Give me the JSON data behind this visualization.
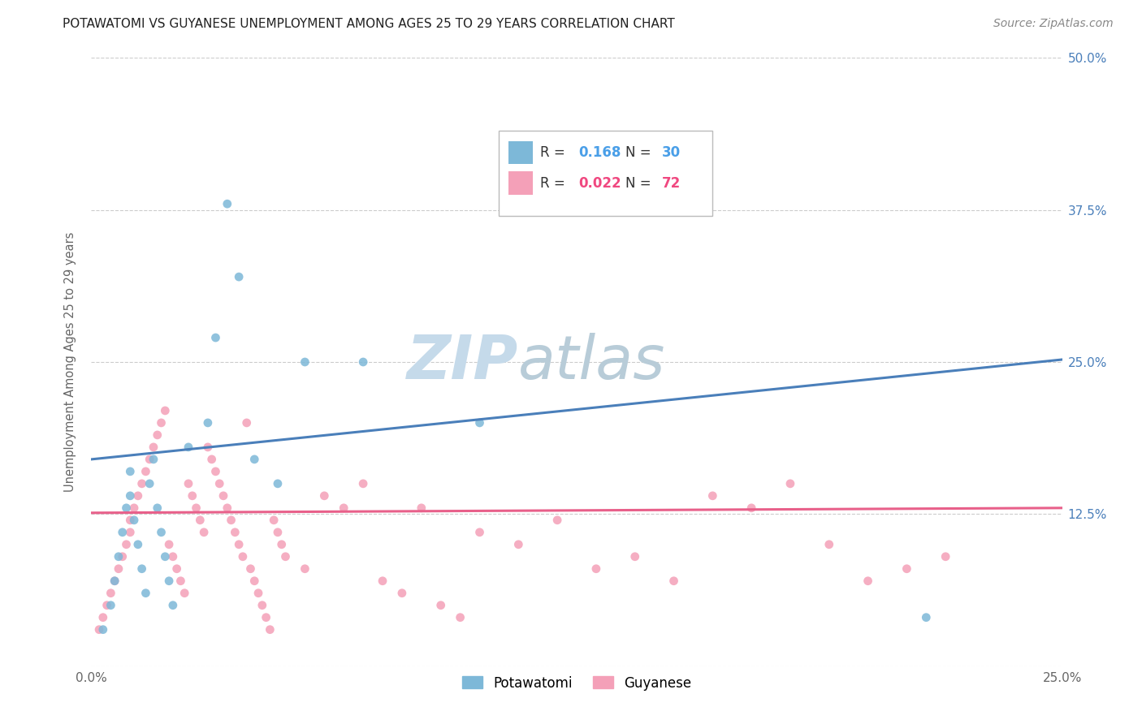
{
  "title": "POTAWATOMI VS GUYANESE UNEMPLOYMENT AMONG AGES 25 TO 29 YEARS CORRELATION CHART",
  "source": "Source: ZipAtlas.com",
  "ylabel": "Unemployment Among Ages 25 to 29 years",
  "xlim": [
    0,
    0.25
  ],
  "ylim": [
    0,
    0.5
  ],
  "xticks": [
    0.0,
    0.05,
    0.1,
    0.15,
    0.2,
    0.25
  ],
  "xticklabels": [
    "0.0%",
    "",
    "",
    "",
    "",
    "25.0%"
  ],
  "yticks": [
    0.0,
    0.125,
    0.25,
    0.375,
    0.5
  ],
  "yticklabels_right": [
    "",
    "12.5%",
    "25.0%",
    "37.5%",
    "50.0%"
  ],
  "potawatomi_R": 0.168,
  "potawatomi_N": 30,
  "guyanese_R": 0.022,
  "guyanese_N": 72,
  "potawatomi_color": "#7db8d8",
  "guyanese_color": "#f4a0b8",
  "potawatomi_line_color": "#4a7fba",
  "guyanese_line_color": "#e8608a",
  "legend_color_potawatomi": "#4a9fe8",
  "legend_color_guyanese": "#f04880",
  "watermark_color": "#d8e8f0",
  "background_color": "#ffffff",
  "potawatomi_x": [
    0.003,
    0.005,
    0.006,
    0.007,
    0.008,
    0.009,
    0.01,
    0.01,
    0.011,
    0.012,
    0.013,
    0.014,
    0.015,
    0.016,
    0.017,
    0.018,
    0.019,
    0.02,
    0.021,
    0.025,
    0.03,
    0.032,
    0.035,
    0.038,
    0.042,
    0.048,
    0.055,
    0.07,
    0.1,
    0.215
  ],
  "potawatomi_y": [
    0.03,
    0.05,
    0.07,
    0.09,
    0.11,
    0.13,
    0.14,
    0.16,
    0.12,
    0.1,
    0.08,
    0.06,
    0.15,
    0.17,
    0.13,
    0.11,
    0.09,
    0.07,
    0.05,
    0.18,
    0.2,
    0.27,
    0.38,
    0.32,
    0.17,
    0.15,
    0.25,
    0.25,
    0.2,
    0.04
  ],
  "guyanese_x": [
    0.002,
    0.003,
    0.004,
    0.005,
    0.006,
    0.007,
    0.008,
    0.009,
    0.01,
    0.01,
    0.011,
    0.012,
    0.013,
    0.014,
    0.015,
    0.016,
    0.017,
    0.018,
    0.019,
    0.02,
    0.021,
    0.022,
    0.023,
    0.024,
    0.025,
    0.026,
    0.027,
    0.028,
    0.029,
    0.03,
    0.031,
    0.032,
    0.033,
    0.034,
    0.035,
    0.036,
    0.037,
    0.038,
    0.039,
    0.04,
    0.041,
    0.042,
    0.043,
    0.044,
    0.045,
    0.046,
    0.047,
    0.048,
    0.049,
    0.05,
    0.055,
    0.06,
    0.065,
    0.07,
    0.075,
    0.08,
    0.085,
    0.09,
    0.095,
    0.1,
    0.11,
    0.12,
    0.13,
    0.14,
    0.15,
    0.16,
    0.17,
    0.18,
    0.19,
    0.2,
    0.21,
    0.22
  ],
  "guyanese_y": [
    0.03,
    0.04,
    0.05,
    0.06,
    0.07,
    0.08,
    0.09,
    0.1,
    0.11,
    0.12,
    0.13,
    0.14,
    0.15,
    0.16,
    0.17,
    0.18,
    0.19,
    0.2,
    0.21,
    0.1,
    0.09,
    0.08,
    0.07,
    0.06,
    0.15,
    0.14,
    0.13,
    0.12,
    0.11,
    0.18,
    0.17,
    0.16,
    0.15,
    0.14,
    0.13,
    0.12,
    0.11,
    0.1,
    0.09,
    0.2,
    0.08,
    0.07,
    0.06,
    0.05,
    0.04,
    0.03,
    0.12,
    0.11,
    0.1,
    0.09,
    0.08,
    0.14,
    0.13,
    0.15,
    0.07,
    0.06,
    0.13,
    0.05,
    0.04,
    0.11,
    0.1,
    0.12,
    0.08,
    0.09,
    0.07,
    0.14,
    0.13,
    0.15,
    0.1,
    0.07,
    0.08,
    0.09
  ],
  "blue_line_x0": 0.0,
  "blue_line_y0": 0.17,
  "blue_line_x1": 0.25,
  "blue_line_y1": 0.252,
  "pink_line_x0": 0.0,
  "pink_line_y0": 0.126,
  "pink_line_x1": 0.25,
  "pink_line_y1": 0.13
}
